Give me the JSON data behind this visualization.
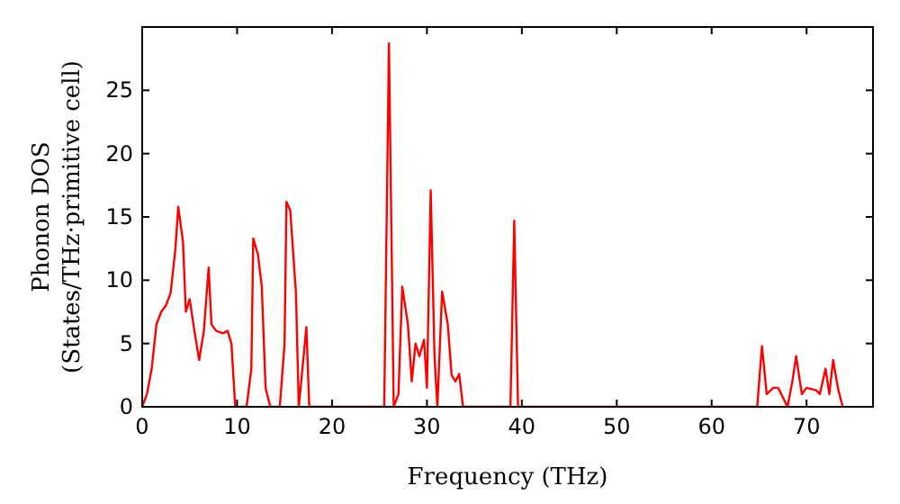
{
  "chart_data": {
    "type": "line",
    "xlabel": "Frequency (THz)",
    "ylabel": "Phonon DOS\n(States/THz·primitive cell)",
    "xlim": [
      0,
      77
    ],
    "ylim": [
      0,
      30
    ],
    "xticks": [
      0,
      10,
      20,
      30,
      40,
      50,
      60,
      70
    ],
    "yticks": [
      0,
      5,
      10,
      15,
      20,
      25
    ],
    "grid": false,
    "series": [
      {
        "color": "#ff0000",
        "x": [
          0,
          0.5,
          1,
          1.5,
          2,
          2.5,
          3,
          3.5,
          3.8,
          4.3,
          4.6,
          5,
          5.5,
          6,
          6.5,
          7,
          7.3,
          7.8,
          8.5,
          9,
          9.4,
          9.8,
          11,
          11.5,
          11.7,
          12.2,
          12.6,
          13,
          13.5,
          14.5,
          15,
          15.2,
          15.6,
          16.2,
          16.5,
          17.3,
          17.6,
          25.5,
          26,
          26.5,
          27,
          27.4,
          28,
          28.4,
          28.8,
          29.2,
          29.7,
          30,
          30.4,
          30.8,
          31.1,
          31.6,
          32.2,
          32.6,
          33,
          33.4,
          33.8,
          38.8,
          39.2,
          39.6,
          64.8,
          65.3,
          65.8,
          66.5,
          67,
          68,
          68.5,
          68.9,
          69.5,
          70,
          71,
          71.4,
          72,
          72.4,
          72.8,
          73.3,
          73.8
        ],
        "values": [
          0,
          1,
          3,
          6.5,
          7.5,
          8,
          9,
          12.5,
          15.8,
          13,
          7.5,
          8.5,
          6,
          3.7,
          6,
          11,
          6.5,
          6,
          5.8,
          6,
          5,
          0,
          0,
          3,
          13.3,
          12,
          9.5,
          1.5,
          0,
          0,
          5,
          16.2,
          15.5,
          9,
          0,
          6.3,
          0,
          0,
          28.7,
          0,
          1,
          9.5,
          6.5,
          2,
          5,
          4,
          5.3,
          1.5,
          17.1,
          4,
          0,
          9.1,
          6.5,
          2.5,
          2,
          2.6,
          0,
          0,
          14.7,
          0,
          0,
          4.8,
          1,
          1.5,
          1.5,
          0,
          2,
          4,
          1,
          1.5,
          1.3,
          1,
          3,
          1,
          3.7,
          1.5,
          0
        ]
      }
    ]
  }
}
